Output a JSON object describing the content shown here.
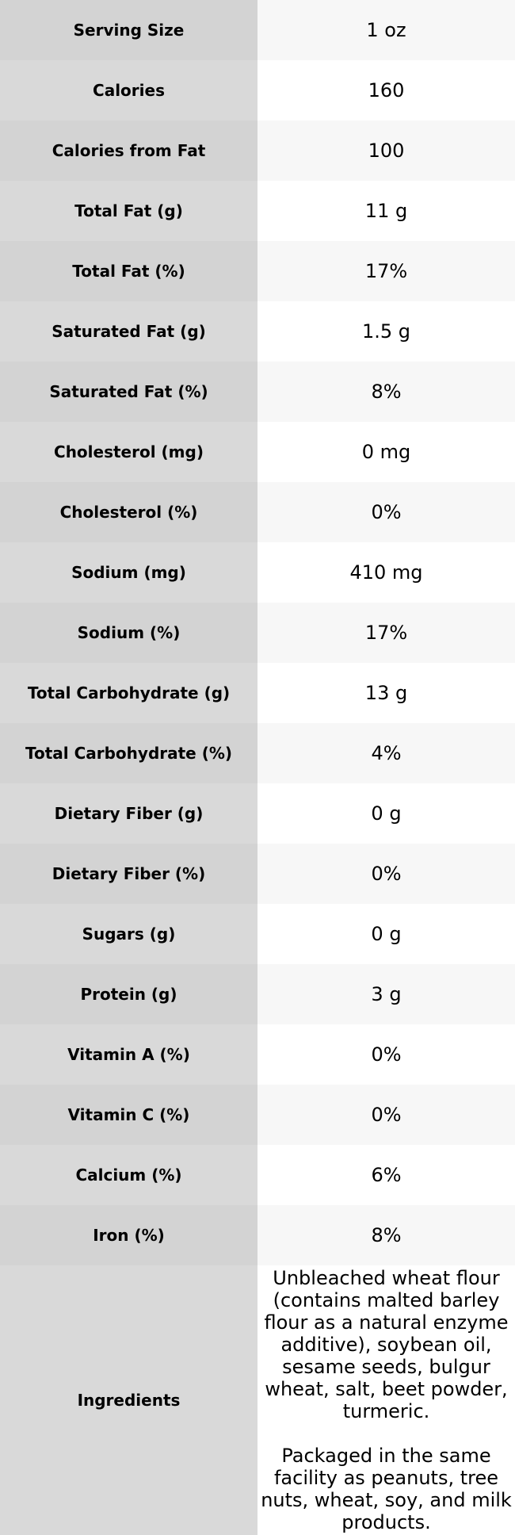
{
  "rows": [
    {
      "label": "Serving Size",
      "value": "1 oz"
    },
    {
      "label": "Calories",
      "value": "160"
    },
    {
      "label": "Calories from Fat",
      "value": "100"
    },
    {
      "label": "Total Fat (g)",
      "value": "11 g"
    },
    {
      "label": "Total Fat (%)",
      "value": "17%"
    },
    {
      "label": "Saturated Fat (g)",
      "value": "1.5 g"
    },
    {
      "label": "Saturated Fat (%)",
      "value": "8%"
    },
    {
      "label": "Cholesterol (mg)",
      "value": "0 mg"
    },
    {
      "label": "Cholesterol (%)",
      "value": "0%"
    },
    {
      "label": "Sodium (mg)",
      "value": "410 mg"
    },
    {
      "label": "Sodium (%)",
      "value": "17%"
    },
    {
      "label": "Total Carbohydrate (g)",
      "value": "13 g"
    },
    {
      "label": "Total Carbohydrate (%)",
      "value": "4%"
    },
    {
      "label": "Dietary Fiber (g)",
      "value": "0 g"
    },
    {
      "label": "Dietary Fiber (%)",
      "value": "0%"
    },
    {
      "label": "Sugars (g)",
      "value": "0 g"
    },
    {
      "label": "Protein (g)",
      "value": "3 g"
    },
    {
      "label": "Vitamin A (%)",
      "value": "0%"
    },
    {
      "label": "Vitamin C (%)",
      "value": "0%"
    },
    {
      "label": "Calcium (%)",
      "value": "6%"
    },
    {
      "label": "Iron (%)",
      "value": "8%"
    }
  ],
  "ingredients": {
    "label": "Ingredients",
    "text": "Unbleached wheat flour (contains malted barley flour as a natural enzyme additive), soybean oil, sesame seeds, bulgur wheat, salt, beet powder, turmeric.",
    "allergen_note": "Packaged in the same facility as peanuts, tree nuts, wheat, soy, and milk products."
  },
  "colors": {
    "label_bg_dark": "#d3d3d3",
    "label_bg_light": "#d9d9d9",
    "value_bg_tint": "#f7f7f7",
    "value_bg_white": "#ffffff"
  }
}
